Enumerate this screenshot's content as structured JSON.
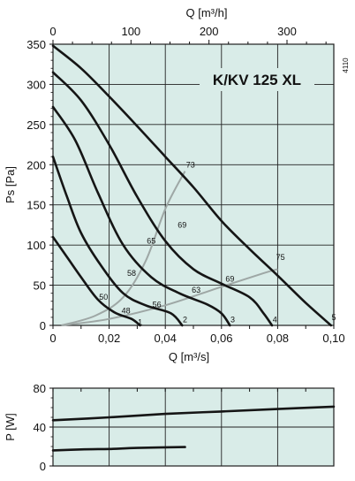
{
  "chart_data": [
    {
      "type": "line",
      "title": "K/KV 125 XL",
      "side_label": "4110",
      "xlabel_bottom": "Q [m³/s]",
      "xlabel_top": "Q [m³/h]",
      "ylabel": "Ps [Pa]",
      "xlim": [
        0,
        0.1
      ],
      "ylim": [
        0,
        350
      ],
      "x_ticks": [
        "0",
        "0,02",
        "0,04",
        "0,06",
        "0,08",
        "0,10"
      ],
      "x_tick_values": [
        0,
        0.02,
        0.04,
        0.06,
        0.08,
        0.1
      ],
      "top_ticks": [
        "0",
        "100",
        "200",
        "300"
      ],
      "top_tick_values": [
        0,
        100,
        200,
        300
      ],
      "y_ticks": [
        "0",
        "50",
        "100",
        "150",
        "200",
        "250",
        "300",
        "350"
      ],
      "y_tick_values": [
        0,
        50,
        100,
        150,
        200,
        250,
        300,
        350
      ],
      "grid": true,
      "background": "#d9ece8",
      "series": [
        {
          "name": "1",
          "points": [
            [
              0,
              110
            ],
            [
              0.005,
              85
            ],
            [
              0.01,
              60
            ],
            [
              0.016,
              32
            ],
            [
              0.022,
              16
            ],
            [
              0.028,
              8
            ],
            [
              0.031,
              0
            ]
          ]
        },
        {
          "name": "2",
          "points": [
            [
              0,
              210
            ],
            [
              0.005,
              160
            ],
            [
              0.01,
              115
            ],
            [
              0.017,
              75
            ],
            [
              0.025,
              40
            ],
            [
              0.033,
              25
            ],
            [
              0.042,
              15
            ],
            [
              0.046,
              0
            ]
          ]
        },
        {
          "name": "3",
          "points": [
            [
              0,
              272
            ],
            [
              0.008,
              230
            ],
            [
              0.016,
              165
            ],
            [
              0.025,
              100
            ],
            [
              0.035,
              60
            ],
            [
              0.045,
              40
            ],
            [
              0.055,
              26
            ],
            [
              0.06,
              15
            ],
            [
              0.063,
              0
            ]
          ]
        },
        {
          "name": "4",
          "points": [
            [
              0,
              315
            ],
            [
              0.01,
              280
            ],
            [
              0.02,
              225
            ],
            [
              0.03,
              160
            ],
            [
              0.04,
              105
            ],
            [
              0.05,
              70
            ],
            [
              0.06,
              52
            ],
            [
              0.07,
              35
            ],
            [
              0.075,
              15
            ],
            [
              0.078,
              0
            ]
          ]
        },
        {
          "name": "5",
          "points": [
            [
              0,
              348
            ],
            [
              0.01,
              320
            ],
            [
              0.02,
              285
            ],
            [
              0.03,
              248
            ],
            [
              0.04,
              210
            ],
            [
              0.05,
              172
            ],
            [
              0.06,
              130
            ],
            [
              0.07,
              95
            ],
            [
              0.08,
              62
            ],
            [
              0.09,
              28
            ],
            [
              0.099,
              0
            ]
          ]
        }
      ],
      "system_curves": [
        {
          "points": [
            [
              0.003,
              0
            ],
            [
              0.015,
              12
            ],
            [
              0.025,
              35
            ],
            [
              0.033,
              80
            ],
            [
              0.04,
              145
            ],
            [
              0.047,
              192
            ]
          ]
        },
        {
          "points": [
            [
              0.003,
              0
            ],
            [
              0.02,
              8
            ],
            [
              0.04,
              25
            ],
            [
              0.06,
              48
            ],
            [
              0.075,
              65
            ],
            [
              0.08,
              70
            ]
          ]
        }
      ],
      "labels": [
        {
          "text": "1",
          "x": 0.031,
          "y": 4
        },
        {
          "text": "2",
          "x": 0.047,
          "y": 7
        },
        {
          "text": "3",
          "x": 0.064,
          "y": 7
        },
        {
          "text": "4",
          "x": 0.079,
          "y": 7
        },
        {
          "text": "5",
          "x": 0.1,
          "y": 10
        },
        {
          "text": "48",
          "x": 0.026,
          "y": 18
        },
        {
          "text": "50",
          "x": 0.018,
          "y": 35
        },
        {
          "text": "56",
          "x": 0.037,
          "y": 26
        },
        {
          "text": "58",
          "x": 0.028,
          "y": 65
        },
        {
          "text": "63",
          "x": 0.051,
          "y": 44
        },
        {
          "text": "65",
          "x": 0.035,
          "y": 105
        },
        {
          "text": "69",
          "x": 0.046,
          "y": 125
        },
        {
          "text": "69",
          "x": 0.063,
          "y": 58
        },
        {
          "text": "73",
          "x": 0.049,
          "y": 200
        },
        {
          "text": "75",
          "x": 0.081,
          "y": 85
        }
      ]
    },
    {
      "type": "line",
      "xlabel": "",
      "ylabel": "P [W]",
      "xlim": [
        0,
        0.1
      ],
      "ylim": [
        0,
        80
      ],
      "y_ticks": [
        "0",
        "40",
        "80"
      ],
      "y_tick_values": [
        0,
        40,
        80
      ],
      "grid": true,
      "background": "#d9ece8",
      "series": [
        {
          "name": "1",
          "points": [
            [
              0,
              16
            ],
            [
              0.01,
              17
            ],
            [
              0.02,
              17.5
            ],
            [
              0.03,
              18.5
            ],
            [
              0.047,
              19.5
            ]
          ]
        },
        {
          "name": "2",
          "points": [
            [
              0,
              47
            ],
            [
              0.02,
              50
            ],
            [
              0.04,
              53.5
            ],
            [
              0.06,
              56
            ],
            [
              0.08,
              58.5
            ],
            [
              0.1,
              61
            ]
          ]
        }
      ]
    }
  ]
}
